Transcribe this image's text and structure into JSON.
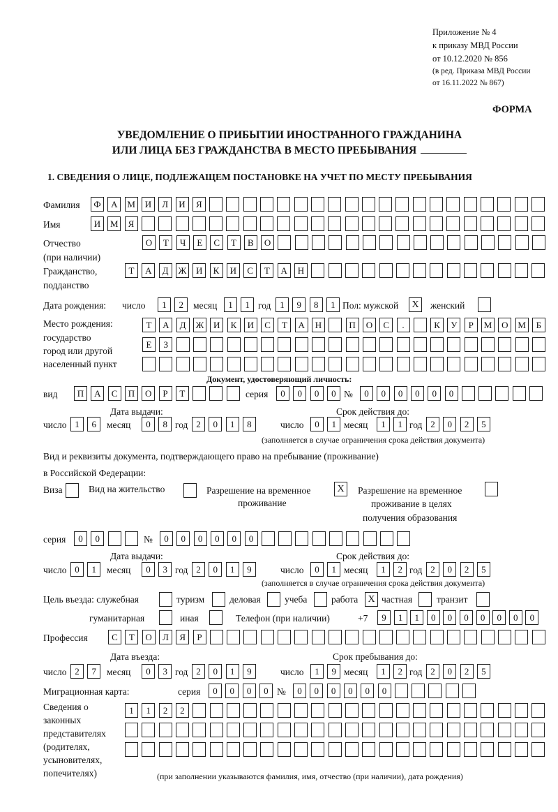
{
  "header": {
    "appendix": "Приложение № 4",
    "order": "к приказу МВД России",
    "order_date": "от 10.12.2020 № 856",
    "edition_1": "(в ред. Приказа МВД России",
    "edition_2": "от 16.11.2022 № 867)",
    "form_label": "ФОРМА",
    "title_1": "УВЕДОМЛЕНИЕ О ПРИБЫТИИ ИНОСТРАННОГО ГРАЖДАНИНА",
    "title_2": "ИЛИ ЛИЦА БЕЗ ГРАЖДАНСТВА В МЕСТО ПРЕБЫВАНИЯ"
  },
  "section1": {
    "heading": "1. СВЕДЕНИЯ О ЛИЦЕ, ПОДЛЕЖАЩЕМ ПОСТАНОВКЕ НА УЧЕТ ПО МЕСТУ ПРЕБЫВАНИЯ",
    "surname_label": "Фамилия",
    "surname": "ФАМИЛИЯ",
    "name_label": "Имя",
    "name": "ИМЯ",
    "patronymic_label_1": "Отчество",
    "patronymic_label_2": "(при наличии)",
    "patronymic": "ОТЧЕСТВО",
    "citizenship_label_1": "Гражданство,",
    "citizenship_label_2": "подданство",
    "citizenship": "ТАДЖИКИСТАН",
    "birth": {
      "label": "Дата рождения:",
      "day_label": "число",
      "day": "12",
      "month_label": "месяц",
      "month": "11",
      "year_label": "год",
      "year": "1981",
      "sex_label": "Пол: мужской",
      "male": "X",
      "female_label": "женский",
      "female": ""
    },
    "birthplace": {
      "label_1": "Место рождения:",
      "label_2": "государство",
      "label_3": "город или другой",
      "label_4": "населенный пункт",
      "line_1": "ТАДЖИКИСТАН ПОС. КУРМОМБ",
      "line_2": "ЕЗ",
      "line_3": ""
    },
    "id_doc": {
      "heading": "Документ, удостоверяющий личность:",
      "type_label": "вид",
      "type": "ПАСПОРТ",
      "series_label": "серия",
      "series": "0000",
      "number_label": "№",
      "number": "000000",
      "issue_label": "Дата выдачи:",
      "valid_label": "Срок действия до:",
      "day_label": "число",
      "month_label": "месяц",
      "year_label": "год",
      "issue_day": "16",
      "issue_month": "08",
      "issue_year": "2018",
      "valid_day": "01",
      "valid_month": "11",
      "valid_year": "2025",
      "note": "(заполняется в случае ограничения срока действия документа)"
    },
    "stay_doc": {
      "label_1": "Вид и реквизиты документа, подтверждающего право на пребывание (проживание)",
      "label_2": "в Российской Федерации:",
      "visa_label": "Виза",
      "visa": "",
      "residence_label": "Вид на жительство",
      "residence": "",
      "temp_label_1": "Разрешение на временное",
      "temp_label_2": "проживание",
      "temp": "X",
      "edu_label_1": "Разрешение на временное",
      "edu_label_2": "проживание в целях",
      "edu_label_3": "получения образования",
      "edu": "",
      "series_label": "серия",
      "series": "00",
      "number_label": "№",
      "number": "000000",
      "issue_label": "Дата выдачи:",
      "valid_label": "Срок действия до:",
      "issue_day": "01",
      "issue_month": "03",
      "issue_year": "2019",
      "valid_day": "01",
      "valid_month": "12",
      "valid_year": "2025",
      "note": "(заполняется в случае ограничения срока действия документа)"
    },
    "purpose": {
      "label": "Цель въезда: служебная",
      "service": "",
      "tourism_label": "туризм",
      "tourism": "",
      "business_label": "деловая",
      "business": "",
      "study_label": "учеба",
      "study": "",
      "work_label": "работа",
      "work": "X",
      "private_label": "частная",
      "private": "",
      "transit_label": "транзит",
      "transit": "",
      "humanitarian_label": "гуманитарная",
      "humanitarian": "",
      "other_label": "иная",
      "other": ""
    },
    "phone_label": "Телефон (при наличии)",
    "phone_prefix": "+7",
    "phone": "9110000000",
    "profession_label": "Профессия",
    "profession": "СТОЛЯР",
    "entry": {
      "entry_label": "Дата въезда:",
      "stay_label": "Срок пребывания до:",
      "entry_day": "27",
      "entry_month": "03",
      "entry_year": "2019",
      "stay_day": "19",
      "stay_month": "12",
      "stay_year": "2025"
    },
    "migration_card": {
      "label": "Миграционная карта:",
      "series_label": "серия",
      "series": "0000",
      "number_label": "№",
      "number": "000000"
    },
    "representatives": {
      "label_1": "Сведения о",
      "label_2": "законных",
      "label_3": "представителях",
      "label_4": "(родителях,",
      "label_5": "усыновителях,",
      "label_6": "попечителях)",
      "line_1": "1122",
      "line_2": "",
      "line_3": "",
      "note": "(при заполнении указываются фамилия, имя, отчество (при наличии), дата рождения)"
    }
  }
}
